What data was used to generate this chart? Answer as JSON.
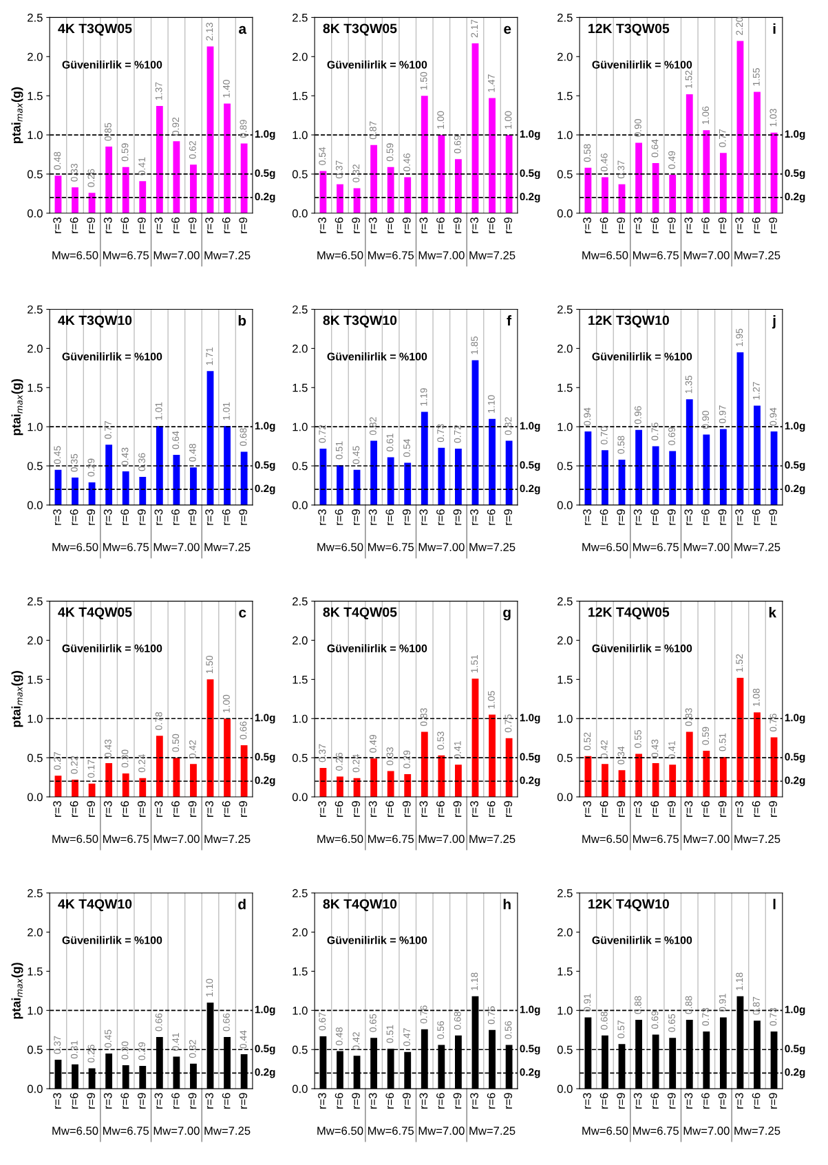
{
  "chart_data": [
    {
      "type": "bar",
      "title": "4K T3QW05",
      "ylabel": "ptai$_{max}$(g)",
      "categories": [
        "r=3",
        "r=6",
        "r=9",
        "r=3",
        "r=6",
        "r=9",
        "r=3",
        "r=6",
        "r=9",
        "r=3",
        "r=6",
        "r=9"
      ],
      "series": [
        {
          "color": "#ff00ff",
          "values": [
            0.48,
            0.33,
            0.26,
            0.85,
            0.59,
            0.41,
            1.37,
            0.92,
            0.62,
            2.13,
            1.4,
            0.89
          ],
          "value_labels": [
            "0.48",
            "0.33",
            "0.26",
            "0.85",
            "0.59",
            "0.41",
            "1.37",
            "0.92",
            "0.62",
            "2.13",
            "1.40",
            "0.89"
          ]
        }
      ],
      "ylim": [
        0,
        2.5
      ],
      "yticks": [
        {
          "value": 0,
          "label": "0.0"
        },
        {
          "value": 0.5,
          "label": "0.5"
        },
        {
          "value": 1,
          "label": "1.0"
        },
        {
          "value": 1.5,
          "label": "1.5"
        },
        {
          "value": 2,
          "label": "2.0"
        },
        {
          "value": 2.5,
          "label": "2.5"
        }
      ],
      "ref_lines": [
        {
          "axis": "y",
          "value": 1.0,
          "label": "1.0g",
          "color": "#000000",
          "line_style": "dashed"
        },
        {
          "axis": "y",
          "value": 0.5,
          "label": "0.5g",
          "color": "#000000",
          "line_style": "dashed"
        },
        {
          "axis": "y",
          "value": 0.2,
          "label": "0.2g",
          "color": "#000000",
          "line_style": "dashed"
        }
      ],
      "annotations": [
        "Güvenilirlik = %100",
        "a",
        "Mw=6.50",
        "Mw=6.75",
        "Mw=7.00",
        "Mw=7.25"
      ],
      "grid": "x"
    },
    {
      "type": "bar",
      "title": "8K T3QW05",
      "categories": [
        "r=3",
        "r=6",
        "r=9",
        "r=3",
        "r=6",
        "r=9",
        "r=3",
        "r=6",
        "r=9",
        "r=3",
        "r=6",
        "r=9"
      ],
      "series": [
        {
          "color": "#ff00ff",
          "values": [
            0.54,
            0.37,
            0.32,
            0.87,
            0.59,
            0.46,
            1.5,
            1.0,
            0.69,
            2.17,
            1.47,
            1.0
          ],
          "value_labels": [
            "0.54",
            "0.37",
            "0.32",
            "0.87",
            "0.59",
            "0.46",
            "1.50",
            "1.00",
            "0.69",
            "2.17",
            "1.47",
            "1.00"
          ]
        }
      ],
      "ylim": [
        0,
        2.5
      ],
      "yticks": [
        {
          "value": 0,
          "label": "0.0"
        },
        {
          "value": 0.5,
          "label": "0.5"
        },
        {
          "value": 1,
          "label": "1.0"
        },
        {
          "value": 1.5,
          "label": "1.5"
        },
        {
          "value": 2,
          "label": "2.0"
        },
        {
          "value": 2.5,
          "label": "2.5"
        }
      ],
      "ref_lines": [
        {
          "axis": "y",
          "value": 1.0,
          "label": "1.0g",
          "color": "#000000",
          "line_style": "dashed"
        },
        {
          "axis": "y",
          "value": 0.5,
          "label": "0.5g",
          "color": "#000000",
          "line_style": "dashed"
        },
        {
          "axis": "y",
          "value": 0.2,
          "label": "0.2g",
          "color": "#000000",
          "line_style": "dashed"
        }
      ],
      "annotations": [
        "Güvenilirlik = %100",
        "e",
        "Mw=6.50",
        "Mw=6.75",
        "Mw=7.00",
        "Mw=7.25"
      ],
      "grid": "x"
    },
    {
      "type": "bar",
      "title": "12K T3QW05",
      "categories": [
        "r=3",
        "r=6",
        "r=9",
        "r=3",
        "r=6",
        "r=9",
        "r=3",
        "r=6",
        "r=9",
        "r=3",
        "r=6",
        "r=9"
      ],
      "series": [
        {
          "color": "#ff00ff",
          "values": [
            0.58,
            0.46,
            0.37,
            0.9,
            0.64,
            0.49,
            1.52,
            1.06,
            0.77,
            2.2,
            1.55,
            1.03
          ],
          "value_labels": [
            "0.58",
            "0.46",
            "0.37",
            "0.90",
            "0.64",
            "0.49",
            "1.52",
            "1.06",
            "0.77",
            "2.20",
            "1.55",
            "1.03"
          ]
        }
      ],
      "ylim": [
        0,
        2.5
      ],
      "yticks": [
        {
          "value": 0,
          "label": "0.0"
        },
        {
          "value": 0.5,
          "label": "0.5"
        },
        {
          "value": 1,
          "label": "1.0"
        },
        {
          "value": 1.5,
          "label": "1.5"
        },
        {
          "value": 2,
          "label": "2.0"
        },
        {
          "value": 2.5,
          "label": "2.5"
        }
      ],
      "ref_lines": [
        {
          "axis": "y",
          "value": 1.0,
          "label": "1.0g",
          "color": "#000000",
          "line_style": "dashed"
        },
        {
          "axis": "y",
          "value": 0.5,
          "label": "0.5g",
          "color": "#000000",
          "line_style": "dashed"
        },
        {
          "axis": "y",
          "value": 0.2,
          "label": "0.2g",
          "color": "#000000",
          "line_style": "dashed"
        }
      ],
      "annotations": [
        "Güvenilirlik = %100",
        "i",
        "Mw=6.50",
        "Mw=6.75",
        "Mw=7.00",
        "Mw=7.25"
      ],
      "grid": "x"
    },
    {
      "type": "bar",
      "title": "4K T3QW10",
      "ylabel": "ptai$_{max}$(g)",
      "categories": [
        "r=3",
        "r=6",
        "r=9",
        "r=3",
        "r=6",
        "r=9",
        "r=3",
        "r=6",
        "r=9",
        "r=3",
        "r=6",
        "r=9"
      ],
      "series": [
        {
          "color": "#0000ff",
          "values": [
            0.45,
            0.35,
            0.29,
            0.77,
            0.43,
            0.36,
            1.01,
            0.64,
            0.48,
            1.71,
            1.01,
            0.68
          ],
          "value_labels": [
            "0.45",
            "0.35",
            "0.29",
            "0.77",
            "0.43",
            "0.36",
            "1.01",
            "0.64",
            "0.48",
            "1.71",
            "1.01",
            "0.68"
          ]
        }
      ],
      "ylim": [
        0,
        2.5
      ],
      "yticks": [
        {
          "value": 0,
          "label": "0.0"
        },
        {
          "value": 0.5,
          "label": "0.5"
        },
        {
          "value": 1,
          "label": "1.0"
        },
        {
          "value": 1.5,
          "label": "1.5"
        },
        {
          "value": 2,
          "label": "2.0"
        },
        {
          "value": 2.5,
          "label": "2.5"
        }
      ],
      "ref_lines": [
        {
          "axis": "y",
          "value": 1.0,
          "label": "1.0g",
          "color": "#000000",
          "line_style": "dashed"
        },
        {
          "axis": "y",
          "value": 0.5,
          "label": "0.5g",
          "color": "#000000",
          "line_style": "dashed"
        },
        {
          "axis": "y",
          "value": 0.2,
          "label": "0.2g",
          "color": "#000000",
          "line_style": "dashed"
        }
      ],
      "annotations": [
        "Güvenilirlik = %100",
        "b",
        "Mw=6.50",
        "Mw=6.75",
        "Mw=7.00",
        "Mw=7.25"
      ],
      "grid": "x"
    },
    {
      "type": "bar",
      "title": "8K T3QW10",
      "categories": [
        "r=3",
        "r=6",
        "r=9",
        "r=3",
        "r=6",
        "r=9",
        "r=3",
        "r=6",
        "r=9",
        "r=3",
        "r=6",
        "r=9"
      ],
      "series": [
        {
          "color": "#0000ff",
          "values": [
            0.72,
            0.51,
            0.45,
            0.82,
            0.61,
            0.54,
            1.19,
            0.73,
            0.72,
            1.85,
            1.1,
            0.82
          ],
          "value_labels": [
            "0.72",
            "0.51",
            "0.45",
            "0.82",
            "0.61",
            "0.54",
            "1.19",
            "0.73",
            "0.72",
            "1.85",
            "1.10",
            "0.82"
          ]
        }
      ],
      "ylim": [
        0,
        2.5
      ],
      "yticks": [
        {
          "value": 0,
          "label": "0.0"
        },
        {
          "value": 0.5,
          "label": "0.5"
        },
        {
          "value": 1,
          "label": "1.0"
        },
        {
          "value": 1.5,
          "label": "1.5"
        },
        {
          "value": 2,
          "label": "2.0"
        },
        {
          "value": 2.5,
          "label": "2.5"
        }
      ],
      "ref_lines": [
        {
          "axis": "y",
          "value": 1.0,
          "label": "1.0g",
          "color": "#000000",
          "line_style": "dashed"
        },
        {
          "axis": "y",
          "value": 0.5,
          "label": "0.5g",
          "color": "#000000",
          "line_style": "dashed"
        },
        {
          "axis": "y",
          "value": 0.2,
          "label": "0.2g",
          "color": "#000000",
          "line_style": "dashed"
        }
      ],
      "annotations": [
        "Güvenilirlik = %100",
        "f",
        "Mw=6.50",
        "Mw=6.75",
        "Mw=7.00",
        "Mw=7.25"
      ],
      "grid": "x"
    },
    {
      "type": "bar",
      "title": "12K T3QW10",
      "categories": [
        "r=3",
        "r=6",
        "r=9",
        "r=3",
        "r=6",
        "r=9",
        "r=3",
        "r=6",
        "r=9",
        "r=3",
        "r=6",
        "r=9"
      ],
      "series": [
        {
          "color": "#0000ff",
          "values": [
            0.94,
            0.7,
            0.58,
            0.96,
            0.75,
            0.69,
            1.35,
            0.9,
            0.97,
            1.95,
            1.27,
            0.94
          ],
          "value_labels": [
            "0.94",
            "0.70",
            "0.58",
            "0.96",
            "0.75",
            "0.69",
            "1.35",
            "0.90",
            "0.97",
            "1.95",
            "1.27",
            "0.94"
          ]
        }
      ],
      "ylim": [
        0,
        2.5
      ],
      "yticks": [
        {
          "value": 0,
          "label": "0.0"
        },
        {
          "value": 0.5,
          "label": "0.5"
        },
        {
          "value": 1,
          "label": "1.0"
        },
        {
          "value": 1.5,
          "label": "1.5"
        },
        {
          "value": 2,
          "label": "2.0"
        },
        {
          "value": 2.5,
          "label": "2.5"
        }
      ],
      "ref_lines": [
        {
          "axis": "y",
          "value": 1.0,
          "label": "1.0g",
          "color": "#000000",
          "line_style": "dashed"
        },
        {
          "axis": "y",
          "value": 0.5,
          "label": "0.5g",
          "color": "#000000",
          "line_style": "dashed"
        },
        {
          "axis": "y",
          "value": 0.2,
          "label": "0.2g",
          "color": "#000000",
          "line_style": "dashed"
        }
      ],
      "annotations": [
        "Güvenilirlik = %100",
        "j",
        "Mw=6.50",
        "Mw=6.75",
        "Mw=7.00",
        "Mw=7.25"
      ],
      "grid": "x"
    },
    {
      "type": "bar",
      "title": "4K T4QW05",
      "ylabel": "ptai$_{max}$(g)",
      "categories": [
        "r=3",
        "r=6",
        "r=9",
        "r=3",
        "r=6",
        "r=9",
        "r=3",
        "r=6",
        "r=9",
        "r=3",
        "r=6",
        "r=9"
      ],
      "series": [
        {
          "color": "#ff0000",
          "values": [
            0.27,
            0.22,
            0.17,
            0.43,
            0.3,
            0.24,
            0.78,
            0.5,
            0.42,
            1.5,
            1.0,
            0.66
          ],
          "value_labels": [
            "0.27",
            "0.22",
            "0.17",
            "0.43",
            "0.30",
            "0.24",
            "0.78",
            "0.50",
            "0.42",
            "1.50",
            "1.00",
            "0.66"
          ]
        }
      ],
      "ylim": [
        0,
        2.5
      ],
      "yticks": [
        {
          "value": 0,
          "label": "0.0"
        },
        {
          "value": 0.5,
          "label": "0.5"
        },
        {
          "value": 1,
          "label": "1.0"
        },
        {
          "value": 1.5,
          "label": "1.5"
        },
        {
          "value": 2,
          "label": "2.0"
        },
        {
          "value": 2.5,
          "label": "2.5"
        }
      ],
      "ref_lines": [
        {
          "axis": "y",
          "value": 1.0,
          "label": "1.0g",
          "color": "#000000",
          "line_style": "dashed"
        },
        {
          "axis": "y",
          "value": 0.5,
          "label": "0.5g",
          "color": "#000000",
          "line_style": "dashed"
        },
        {
          "axis": "y",
          "value": 0.2,
          "label": "0.2g",
          "color": "#000000",
          "line_style": "dashed"
        }
      ],
      "annotations": [
        "Güvenilirlik = %100",
        "c",
        "Mw=6.50",
        "Mw=6.75",
        "Mw=7.00",
        "Mw=7.25"
      ],
      "grid": "x"
    },
    {
      "type": "bar",
      "title": "8K T4QW05",
      "categories": [
        "r=3",
        "r=6",
        "r=9",
        "r=3",
        "r=6",
        "r=9",
        "r=3",
        "r=6",
        "r=9",
        "r=3",
        "r=6",
        "r=9"
      ],
      "series": [
        {
          "color": "#ff0000",
          "values": [
            0.37,
            0.26,
            0.24,
            0.49,
            0.33,
            0.29,
            0.83,
            0.53,
            0.41,
            1.51,
            1.05,
            0.75
          ],
          "value_labels": [
            "0.37",
            "0.26",
            "0.24",
            "0.49",
            "0.33",
            "0.29",
            "0.83",
            "0.53",
            "0.41",
            "1.51",
            "1.05",
            "0.75"
          ]
        }
      ],
      "ylim": [
        0,
        2.5
      ],
      "yticks": [
        {
          "value": 0,
          "label": "0.0"
        },
        {
          "value": 0.5,
          "label": "0.5"
        },
        {
          "value": 1,
          "label": "1.0"
        },
        {
          "value": 1.5,
          "label": "1.5"
        },
        {
          "value": 2,
          "label": "2.0"
        },
        {
          "value": 2.5,
          "label": "2.5"
        }
      ],
      "ref_lines": [
        {
          "axis": "y",
          "value": 1.0,
          "label": "1.0g",
          "color": "#000000",
          "line_style": "dashed"
        },
        {
          "axis": "y",
          "value": 0.5,
          "label": "0.5g",
          "color": "#000000",
          "line_style": "dashed"
        },
        {
          "axis": "y",
          "value": 0.2,
          "label": "0.2g",
          "color": "#000000",
          "line_style": "dashed"
        }
      ],
      "annotations": [
        "Güvenilirlik = %100",
        "g",
        "Mw=6.50",
        "Mw=6.75",
        "Mw=7.00",
        "Mw=7.25"
      ],
      "grid": "x"
    },
    {
      "type": "bar",
      "title": "12K T4QW05",
      "categories": [
        "r=3",
        "r=6",
        "r=9",
        "r=3",
        "r=6",
        "r=9",
        "r=3",
        "r=6",
        "r=9",
        "r=3",
        "r=6",
        "r=9"
      ],
      "series": [
        {
          "color": "#ff0000",
          "values": [
            0.52,
            0.42,
            0.34,
            0.55,
            0.43,
            0.41,
            0.83,
            0.59,
            0.51,
            1.52,
            1.08,
            0.76
          ],
          "value_labels": [
            "0.52",
            "0.42",
            "0.34",
            "0.55",
            "0.43",
            "0.41",
            "0.83",
            "0.59",
            "0.51",
            "1.52",
            "1.08",
            "0.76"
          ]
        }
      ],
      "ylim": [
        0,
        2.5
      ],
      "yticks": [
        {
          "value": 0,
          "label": "0.0"
        },
        {
          "value": 0.5,
          "label": "0.5"
        },
        {
          "value": 1,
          "label": "1.0"
        },
        {
          "value": 1.5,
          "label": "1.5"
        },
        {
          "value": 2,
          "label": "2.0"
        },
        {
          "value": 2.5,
          "label": "2.5"
        }
      ],
      "ref_lines": [
        {
          "axis": "y",
          "value": 1.0,
          "label": "1.0g",
          "color": "#000000",
          "line_style": "dashed"
        },
        {
          "axis": "y",
          "value": 0.5,
          "label": "0.5g",
          "color": "#000000",
          "line_style": "dashed"
        },
        {
          "axis": "y",
          "value": 0.2,
          "label": "0.2g",
          "color": "#000000",
          "line_style": "dashed"
        }
      ],
      "annotations": [
        "Güvenilirlik = %100",
        "k",
        "Mw=6.50",
        "Mw=6.75",
        "Mw=7.00",
        "Mw=7.25"
      ],
      "grid": "x"
    },
    {
      "type": "bar",
      "title": "4K T4QW10",
      "ylabel": "ptai$_{max}$(g)",
      "categories": [
        "r=3",
        "r=6",
        "r=9",
        "r=3",
        "r=6",
        "r=9",
        "r=3",
        "r=6",
        "r=9",
        "r=3",
        "r=6",
        "r=9"
      ],
      "series": [
        {
          "color": "#000000",
          "values": [
            0.37,
            0.31,
            0.26,
            0.45,
            0.3,
            0.29,
            0.66,
            0.41,
            0.32,
            1.1,
            0.66,
            0.44
          ],
          "value_labels": [
            "0.37",
            "0.31",
            "0.26",
            "0.45",
            "0.30",
            "0.29",
            "0.66",
            "0.41",
            "0.32",
            "1.10",
            "0.66",
            "0.44"
          ]
        }
      ],
      "ylim": [
        0,
        2.5
      ],
      "yticks": [
        {
          "value": 0,
          "label": "0.0"
        },
        {
          "value": 0.5,
          "label": "0.5"
        },
        {
          "value": 1,
          "label": "1.0"
        },
        {
          "value": 1.5,
          "label": "1.5"
        },
        {
          "value": 2,
          "label": "2.0"
        },
        {
          "value": 2.5,
          "label": "2.5"
        }
      ],
      "ref_lines": [
        {
          "axis": "y",
          "value": 1.0,
          "label": "1.0g",
          "color": "#000000",
          "line_style": "dashed"
        },
        {
          "axis": "y",
          "value": 0.5,
          "label": "0.5g",
          "color": "#000000",
          "line_style": "dashed"
        },
        {
          "axis": "y",
          "value": 0.2,
          "label": "0.2g",
          "color": "#000000",
          "line_style": "dashed"
        }
      ],
      "annotations": [
        "Güvenilirlik = %100",
        "d",
        "Mw=6.50",
        "Mw=6.75",
        "Mw=7.00",
        "Mw=7.25"
      ],
      "grid": "x"
    },
    {
      "type": "bar",
      "title": "8K T4QW10",
      "categories": [
        "r=3",
        "r=6",
        "r=9",
        "r=3",
        "r=6",
        "r=9",
        "r=3",
        "r=6",
        "r=9",
        "r=3",
        "r=6",
        "r=9"
      ],
      "series": [
        {
          "color": "#000000",
          "values": [
            0.67,
            0.48,
            0.42,
            0.65,
            0.51,
            0.47,
            0.76,
            0.56,
            0.68,
            1.18,
            0.75,
            0.56
          ],
          "value_labels": [
            "0.67",
            "0.48",
            "0.42",
            "0.65",
            "0.51",
            "0.47",
            "0.76",
            "0.56",
            "0.68",
            "1.18",
            "0.75",
            "0.56"
          ]
        }
      ],
      "ylim": [
        0,
        2.5
      ],
      "yticks": [
        {
          "value": 0,
          "label": "0.0"
        },
        {
          "value": 0.5,
          "label": "0.5"
        },
        {
          "value": 1,
          "label": "1.0"
        },
        {
          "value": 1.5,
          "label": "1.5"
        },
        {
          "value": 2,
          "label": "2.0"
        },
        {
          "value": 2.5,
          "label": "2.5"
        }
      ],
      "ref_lines": [
        {
          "axis": "y",
          "value": 1.0,
          "label": "1.0g",
          "color": "#000000",
          "line_style": "dashed"
        },
        {
          "axis": "y",
          "value": 0.5,
          "label": "0.5g",
          "color": "#000000",
          "line_style": "dashed"
        },
        {
          "axis": "y",
          "value": 0.2,
          "label": "0.2g",
          "color": "#000000",
          "line_style": "dashed"
        }
      ],
      "annotations": [
        "Güvenilirlik = %100",
        "h",
        "Mw=6.50",
        "Mw=6.75",
        "Mw=7.00",
        "Mw=7.25"
      ],
      "grid": "x"
    },
    {
      "type": "bar",
      "title": "12K T4QW10",
      "categories": [
        "r=3",
        "r=6",
        "r=9",
        "r=3",
        "r=6",
        "r=9",
        "r=3",
        "r=6",
        "r=9",
        "r=3",
        "r=6",
        "r=9"
      ],
      "series": [
        {
          "color": "#000000",
          "values": [
            0.91,
            0.68,
            0.57,
            0.88,
            0.69,
            0.65,
            0.88,
            0.73,
            0.91,
            1.18,
            0.87,
            0.73
          ],
          "value_labels": [
            "0.91",
            "0.68",
            "0.57",
            "0.88",
            "0.69",
            "0.65",
            "0.88",
            "0.73",
            "0.91",
            "1.18",
            "0.87",
            "0.73"
          ]
        }
      ],
      "ylim": [
        0,
        2.5
      ],
      "yticks": [
        {
          "value": 0,
          "label": "0.0"
        },
        {
          "value": 0.5,
          "label": "0.5"
        },
        {
          "value": 1,
          "label": "1.0"
        },
        {
          "value": 1.5,
          "label": "1.5"
        },
        {
          "value": 2,
          "label": "2.0"
        },
        {
          "value": 2.5,
          "label": "2.5"
        }
      ],
      "ref_lines": [
        {
          "axis": "y",
          "value": 1.0,
          "label": "1.0g",
          "color": "#000000",
          "line_style": "dashed"
        },
        {
          "axis": "y",
          "value": 0.5,
          "label": "0.5g",
          "color": "#000000",
          "line_style": "dashed"
        },
        {
          "axis": "y",
          "value": 0.2,
          "label": "0.2g",
          "color": "#000000",
          "line_style": "dashed"
        }
      ],
      "annotations": [
        "Güvenilirlik = %100",
        "l",
        "Mw=6.50",
        "Mw=6.75",
        "Mw=7.00",
        "Mw=7.25"
      ],
      "grid": "x"
    }
  ]
}
